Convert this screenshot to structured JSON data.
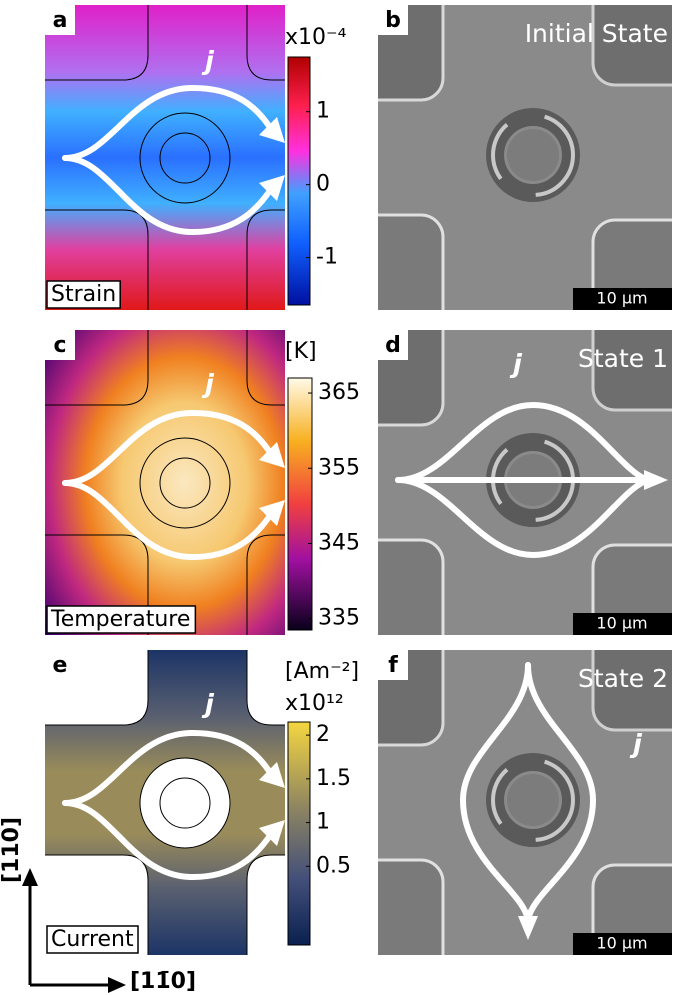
{
  "panels": [
    {
      "label": "a",
      "caption": "Strain",
      "symbol": "j",
      "colorbar": {
        "unit": "x10⁻⁴",
        "ticks": [
          1,
          0,
          -1
        ],
        "lim": [
          -1.65,
          1.75
        ]
      }
    },
    {
      "label": "b",
      "title": "Initial State",
      "scale_bar": "10 µm"
    },
    {
      "label": "c",
      "caption": "Temperature",
      "symbol": "j",
      "colorbar": {
        "unit": "[K]",
        "ticks": [
          365,
          355,
          345,
          335
        ],
        "lim": [
          333.5,
          367
        ]
      }
    },
    {
      "label": "d",
      "title": "State 1",
      "symbol": "j",
      "scale_bar": "10 µm"
    },
    {
      "label": "e",
      "caption": "Current",
      "symbol": "j",
      "colorbar": {
        "unit": "[Am⁻²]",
        "unit2": "x10¹²",
        "ticks": [
          2,
          1.5,
          1,
          0.5
        ],
        "lim": [
          -0.4,
          2.15
        ]
      }
    },
    {
      "label": "f",
      "title": "State 2",
      "symbol": "j",
      "scale_bar": "10 µm"
    }
  ],
  "axes": {
    "vertical": "[110]",
    "horizontal": "[11̄0]"
  }
}
